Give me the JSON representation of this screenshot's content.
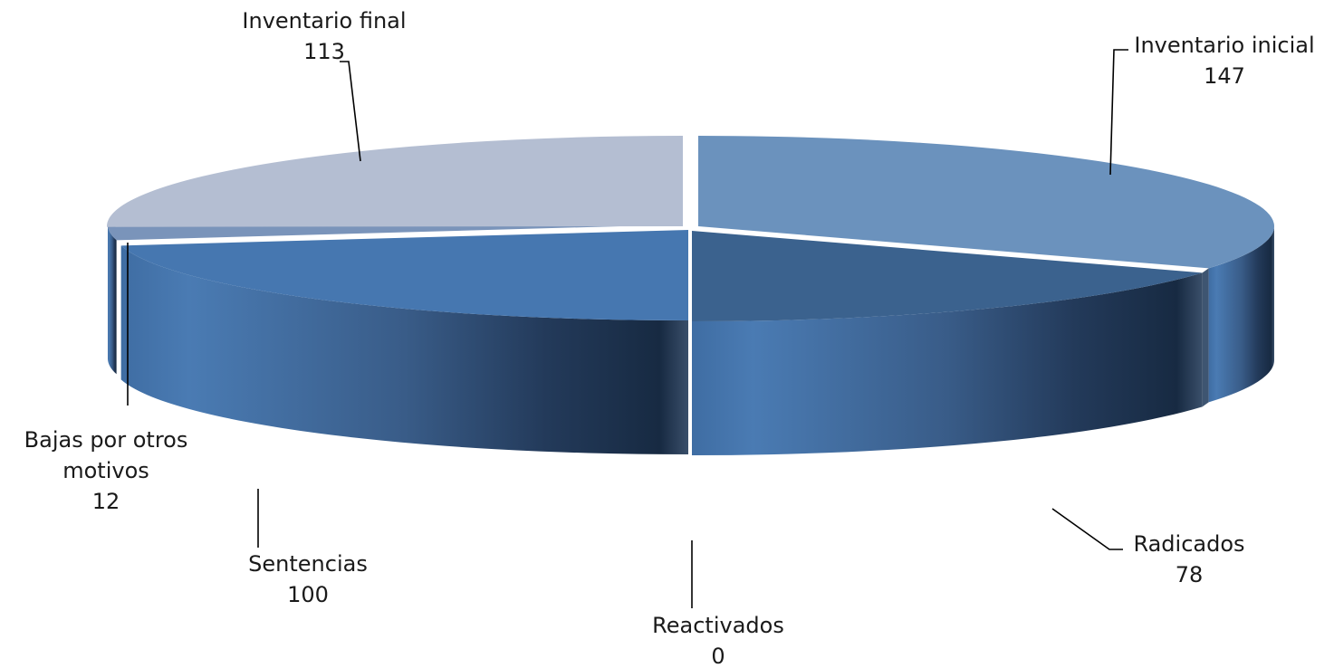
{
  "chart_data": {
    "type": "pie",
    "style": "3d-exploded-pie",
    "categories": [
      "Inventario inicial",
      "Radicados",
      "Reactivados",
      "Sentencias",
      "Bajas por otros motivos",
      "Inventario final"
    ],
    "values": [
      147,
      78,
      0,
      100,
      12,
      113
    ],
    "data_labels": [
      "147",
      "78",
      "0",
      "100",
      "12",
      "113"
    ],
    "colors": [
      "#6b92bd",
      "#3b628e",
      "#2f5179",
      "#4677b0",
      "#7a94ba",
      "#b4bed2"
    ],
    "legend": "none",
    "title": ""
  }
}
